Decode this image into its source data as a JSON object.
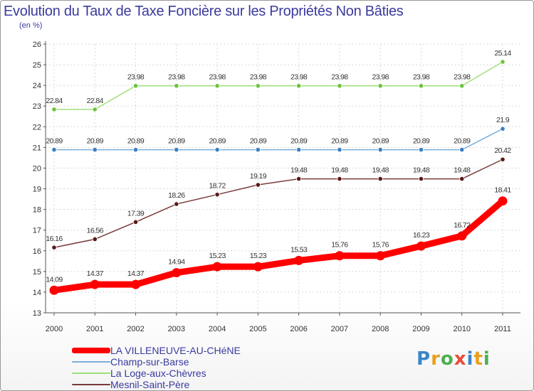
{
  "title": "Evolution du Taux de Taxe Foncière sur les Propriétés Non Bâties",
  "unit": "(en %)",
  "logo": {
    "letters": [
      "P",
      "r",
      "o",
      "x",
      "i",
      "t",
      "i"
    ],
    "colors": [
      "#3a86c8",
      "#e8a020",
      "#4caf50",
      "#e84c3d",
      "#3a86c8",
      "#e8a020",
      "#4caf50"
    ]
  },
  "chart_data": {
    "type": "line",
    "title": "Evolution du Taux de Taxe Foncière sur les Propriétés Non Bâties",
    "ylabel": "(en %)",
    "xlabel": "",
    "ylim": [
      13,
      26
    ],
    "yticks": [
      "13",
      "14",
      "15",
      "16",
      "17",
      "18",
      "19",
      "20",
      "21",
      "22",
      "23",
      "24",
      "25",
      "26"
    ],
    "categories": [
      "2000",
      "2001",
      "2002",
      "2003",
      "2004",
      "2005",
      "2006",
      "2007",
      "2008",
      "2009",
      "2010",
      "2011"
    ],
    "series": [
      {
        "name": "LA VILLENEUVE-AU-CHéNE",
        "color": "#ff0000",
        "marker": "#ff0000",
        "width": "thick",
        "values": [
          14.09,
          14.37,
          14.37,
          14.94,
          15.23,
          15.23,
          15.53,
          15.76,
          15.76,
          16.23,
          16.72,
          18.41
        ],
        "labels": [
          "14.09",
          "14.37",
          "14.37",
          "14.94",
          "15.23",
          "15.23",
          "15.53",
          "15.76",
          "15.76",
          "16.23",
          "16.72",
          "18.41"
        ]
      },
      {
        "name": "Champ-sur-Barse",
        "color": "#7aaedc",
        "marker": "#3a7fc2",
        "width": "thin",
        "values": [
          20.89,
          20.89,
          20.89,
          20.89,
          20.89,
          20.89,
          20.89,
          20.89,
          20.89,
          20.89,
          20.89,
          21.9
        ],
        "labels": [
          "20.89",
          "20.89",
          "20.89",
          "20.89",
          "20.89",
          "20.89",
          "20.89",
          "20.89",
          "20.89",
          "20.89",
          "20.89",
          "21.9"
        ]
      },
      {
        "name": "La Loge-aux-Chèvres",
        "color": "#9de07a",
        "marker": "#6cc43c",
        "width": "thin",
        "values": [
          22.84,
          22.84,
          23.98,
          23.98,
          23.98,
          23.98,
          23.98,
          23.98,
          23.98,
          23.98,
          23.98,
          25.14
        ],
        "labels": [
          "22.84",
          "22.84",
          "23.98",
          "23.98",
          "23.98",
          "23.98",
          "23.98",
          "23.98",
          "23.98",
          "23.98",
          "23.98",
          "25.14"
        ]
      },
      {
        "name": "Mesnil-Saint-Père",
        "color": "#7a3a3a",
        "marker": "#5a1a1a",
        "width": "thin",
        "values": [
          16.16,
          16.56,
          17.39,
          18.26,
          18.72,
          19.19,
          19.48,
          19.48,
          19.48,
          19.48,
          19.48,
          20.42
        ],
        "labels": [
          "16.16",
          "16.56",
          "17.39",
          "18.26",
          "18.72",
          "19.19",
          "19.48",
          "19.48",
          "19.48",
          "19.48",
          "19.48",
          "20.42"
        ]
      }
    ],
    "grid": true,
    "legend_position": "bottom-left"
  }
}
